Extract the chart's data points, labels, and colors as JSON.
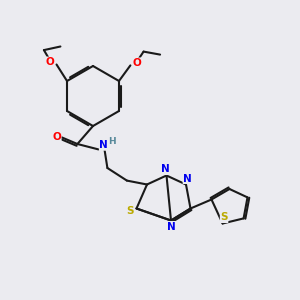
{
  "bg_color": "#ebebf0",
  "bond_color": "#1a1a1a",
  "atom_colors": {
    "O": "#ff0000",
    "N": "#0000ee",
    "S": "#bbaa00",
    "H": "#558899",
    "C": "#1a1a1a"
  },
  "figsize": [
    3.0,
    3.0
  ],
  "dpi": 100
}
